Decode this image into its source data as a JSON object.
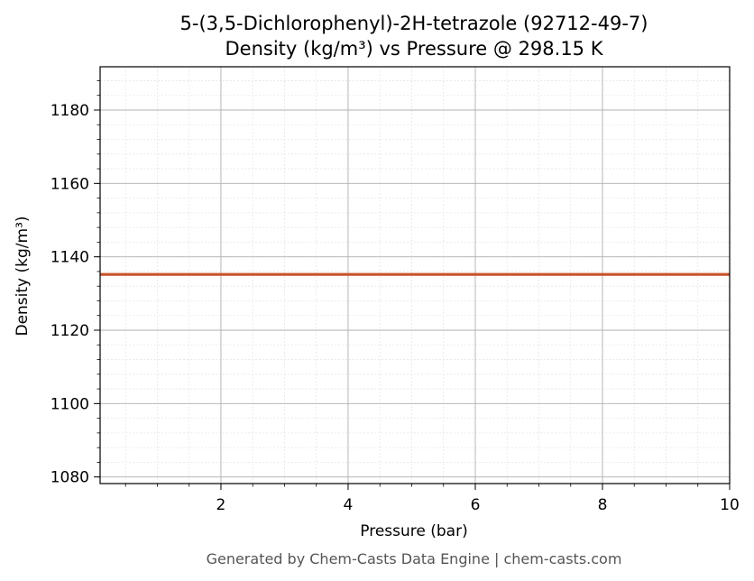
{
  "chart_data": {
    "type": "line",
    "title_line1": "5-(3,5-Dichlorophenyl)-2H-tetrazole (92712-49-7)",
    "title_line2": "Density (kg/m³) vs Pressure @ 298.15 K",
    "xlabel": "Pressure (bar)",
    "ylabel": "Density (kg/m³)",
    "xlim": [
      0.1,
      10
    ],
    "ylim": [
      1078.2,
      1191.8
    ],
    "xticks": [
      2,
      4,
      6,
      8,
      10
    ],
    "yticks": [
      1080,
      1100,
      1120,
      1140,
      1160,
      1180
    ],
    "grid": true,
    "series": [
      {
        "color": "#c8522a",
        "x": [
          0.1,
          10
        ],
        "y": [
          1135.2,
          1135.2
        ]
      }
    ]
  },
  "footer": "Generated by Chem-Casts Data Engine | chem-casts.com"
}
